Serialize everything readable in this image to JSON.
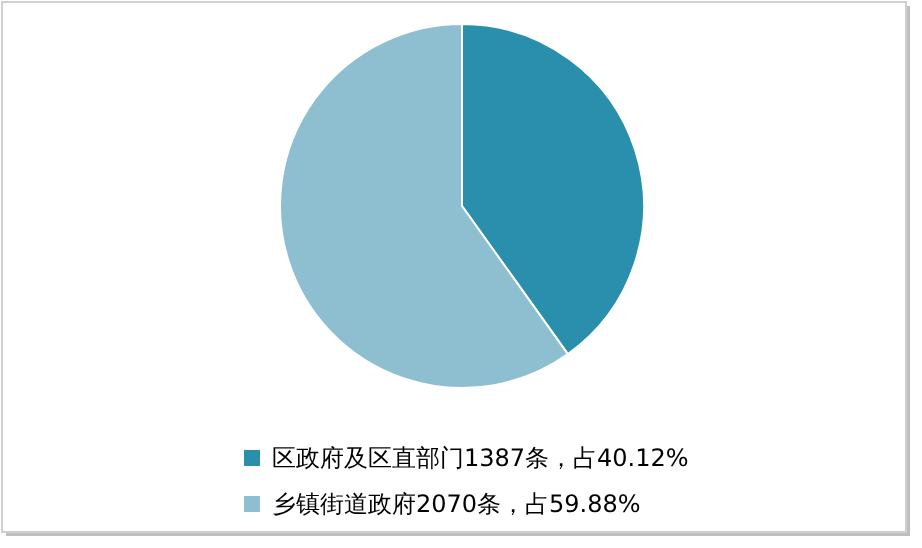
{
  "chart_data": {
    "type": "pie",
    "categories": [
      "区政府及区直部门1387条，占40.12%",
      "乡镇街道政府2070条，占59.88%"
    ],
    "values": [
      1387,
      2070
    ],
    "colors": [
      "#2a8fad",
      "#8dbfd1"
    ],
    "legend": "bottom"
  }
}
